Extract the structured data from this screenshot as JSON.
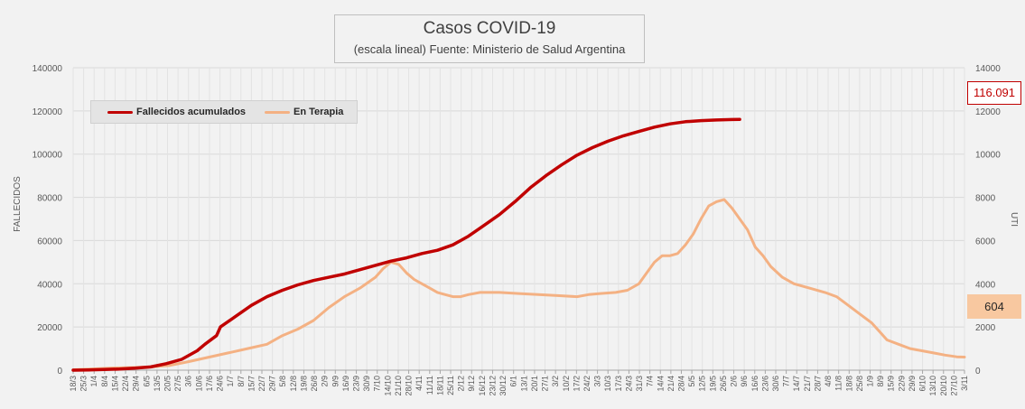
{
  "chart_data": {
    "type": "line",
    "title": "Casos COVID-19",
    "subtitle": "(escala lineal) Fuente: Ministerio de Salud Argentina",
    "ylabel": "FALLECIDOS",
    "y2label": "UTI",
    "ylim": [
      0,
      140000
    ],
    "y2lim": [
      0,
      14000
    ],
    "y_ticks": [
      "0",
      "20000",
      "40000",
      "60000",
      "80000",
      "100000",
      "120000",
      "140000"
    ],
    "y2_ticks": [
      "0",
      "2000",
      "4000",
      "6000",
      "8000",
      "10000",
      "12000",
      "14000"
    ],
    "grid": true,
    "legend_position": "top-left",
    "x_labels": [
      "18/3",
      "25/3",
      "1/4",
      "8/4",
      "15/4",
      "22/4",
      "29/4",
      "6/5",
      "13/5",
      "20/5",
      "27/5",
      "3/6",
      "10/6",
      "17/6",
      "24/6",
      "1/7",
      "8/7",
      "15/7",
      "22/7",
      "29/7",
      "5/8",
      "12/8",
      "19/8",
      "26/8",
      "2/9",
      "9/9",
      "16/9",
      "23/9",
      "30/9",
      "7/10",
      "14/10",
      "21/10",
      "28/10",
      "4/11",
      "11/11",
      "18/11",
      "25/11",
      "2/12",
      "9/12",
      "16/12",
      "23/12",
      "30/12",
      "6/1",
      "13/1",
      "20/1",
      "27/1",
      "3/2",
      "10/2",
      "17/2",
      "24/2",
      "3/3",
      "10/3",
      "17/3",
      "24/3",
      "31/3",
      "7/4",
      "14/4",
      "21/4",
      "28/4",
      "5/5",
      "12/5",
      "19/5",
      "26/5",
      "2/6",
      "9/6",
      "16/6",
      "23/6",
      "30/6",
      "7/7",
      "14/7",
      "21/7",
      "28/7",
      "4/8",
      "11/8",
      "18/8",
      "25/8",
      "1/9",
      "8/9",
      "15/9",
      "22/9",
      "29/9",
      "6/10",
      "13/10",
      "20/10",
      "27/10",
      "3/11"
    ],
    "series": [
      {
        "name": "Fallecidos acumulados",
        "axis": "left",
        "color": "#c00000",
        "points": [
          [
            0,
            0
          ],
          [
            4,
            100
          ],
          [
            8,
            300
          ],
          [
            12,
            500
          ],
          [
            16,
            900
          ],
          [
            20,
            1500
          ],
          [
            24,
            3000
          ],
          [
            28,
            5000
          ],
          [
            32,
            9000
          ],
          [
            34,
            12000
          ],
          [
            37,
            16000
          ],
          [
            38,
            20000
          ],
          [
            42,
            25000
          ],
          [
            46,
            30000
          ],
          [
            50,
            34000
          ],
          [
            54,
            37000
          ],
          [
            58,
            39500
          ],
          [
            62,
            41500
          ],
          [
            66,
            43000
          ],
          [
            70,
            44500
          ],
          [
            74,
            46500
          ],
          [
            78,
            48500
          ],
          [
            82,
            50500
          ],
          [
            86,
            52000
          ],
          [
            90,
            54000
          ],
          [
            94,
            55500
          ],
          [
            98,
            58000
          ],
          [
            102,
            62000
          ],
          [
            106,
            67000
          ],
          [
            110,
            72000
          ],
          [
            114,
            78000
          ],
          [
            118,
            84500
          ],
          [
            122,
            90000
          ],
          [
            126,
            95000
          ],
          [
            130,
            99500
          ],
          [
            134,
            103000
          ],
          [
            138,
            106000
          ],
          [
            142,
            108500
          ],
          [
            146,
            110500
          ],
          [
            150,
            112500
          ],
          [
            154,
            114000
          ],
          [
            158,
            115000
          ],
          [
            162,
            115500
          ],
          [
            166,
            115800
          ],
          [
            170,
            116000
          ],
          [
            172,
            116091
          ]
        ]
      },
      {
        "name": "En Terapia",
        "axis": "right",
        "color": "#f4b183",
        "points": [
          [
            0,
            20
          ],
          [
            5,
            60
          ],
          [
            10,
            100
          ],
          [
            15,
            120
          ],
          [
            20,
            150
          ],
          [
            25,
            220
          ],
          [
            30,
            400
          ],
          [
            35,
            600
          ],
          [
            40,
            800
          ],
          [
            45,
            1000
          ],
          [
            50,
            1200
          ],
          [
            54,
            1600
          ],
          [
            58,
            1900
          ],
          [
            62,
            2300
          ],
          [
            66,
            2900
          ],
          [
            70,
            3400
          ],
          [
            74,
            3800
          ],
          [
            78,
            4300
          ],
          [
            80,
            4700
          ],
          [
            82,
            5000
          ],
          [
            84,
            4900
          ],
          [
            86,
            4500
          ],
          [
            88,
            4200
          ],
          [
            90,
            4000
          ],
          [
            92,
            3800
          ],
          [
            94,
            3600
          ],
          [
            96,
            3500
          ],
          [
            98,
            3400
          ],
          [
            100,
            3400
          ],
          [
            102,
            3500
          ],
          [
            105,
            3600
          ],
          [
            110,
            3600
          ],
          [
            115,
            3550
          ],
          [
            120,
            3500
          ],
          [
            125,
            3450
          ],
          [
            130,
            3400
          ],
          [
            133,
            3500
          ],
          [
            136,
            3550
          ],
          [
            140,
            3600
          ],
          [
            143,
            3700
          ],
          [
            146,
            4000
          ],
          [
            148,
            4500
          ],
          [
            150,
            5000
          ],
          [
            152,
            5300
          ],
          [
            154,
            5300
          ],
          [
            156,
            5400
          ],
          [
            158,
            5800
          ],
          [
            160,
            6300
          ],
          [
            162,
            7000
          ],
          [
            164,
            7600
          ],
          [
            166,
            7800
          ],
          [
            168,
            7900
          ],
          [
            170,
            7500
          ],
          [
            172,
            7000
          ],
          [
            174,
            6500
          ],
          [
            176,
            5700
          ],
          [
            178,
            5300
          ],
          [
            180,
            4800
          ],
          [
            183,
            4300
          ],
          [
            186,
            4000
          ],
          [
            190,
            3800
          ],
          [
            194,
            3600
          ],
          [
            197,
            3400
          ],
          [
            200,
            3000
          ],
          [
            203,
            2600
          ],
          [
            206,
            2200
          ],
          [
            208,
            1800
          ],
          [
            210,
            1400
          ],
          [
            213,
            1200
          ],
          [
            216,
            1000
          ],
          [
            219,
            900
          ],
          [
            222,
            800
          ],
          [
            225,
            700
          ],
          [
            228,
            620
          ],
          [
            230,
            604
          ]
        ]
      }
    ],
    "annotations": [
      "116.091",
      "604"
    ]
  }
}
